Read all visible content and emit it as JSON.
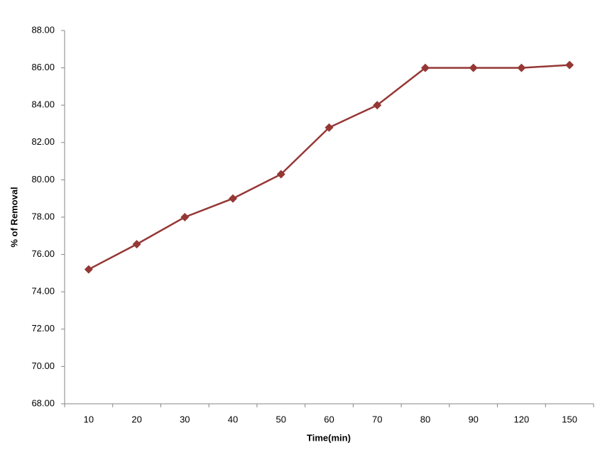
{
  "chart_data": {
    "type": "line",
    "x_label": "Time(min)",
    "y_label": "% of Removal",
    "categories": [
      "10",
      "20",
      "30",
      "40",
      "50",
      "60",
      "70",
      "80",
      "90",
      "120",
      "150"
    ],
    "values": [
      75.2,
      76.55,
      78.0,
      79.0,
      80.3,
      82.8,
      84.0,
      86.0,
      86.0,
      86.0,
      86.15
    ],
    "color": "#953735",
    "ylim": [
      68,
      88
    ],
    "yticks": [
      {
        "value": 68,
        "label": "68.00"
      },
      {
        "value": 70,
        "label": "70.00"
      },
      {
        "value": 72,
        "label": "72.00"
      },
      {
        "value": 74,
        "label": "74.00"
      },
      {
        "value": 76,
        "label": "76.00"
      },
      {
        "value": 78,
        "label": "78.00"
      },
      {
        "value": 80,
        "label": "80.00"
      },
      {
        "value": 82,
        "label": "82.00"
      },
      {
        "value": 84,
        "label": "84.00"
      },
      {
        "value": 86,
        "label": "86.00"
      },
      {
        "value": 88,
        "label": "88.00"
      }
    ],
    "grid": false,
    "marker": "diamond"
  }
}
